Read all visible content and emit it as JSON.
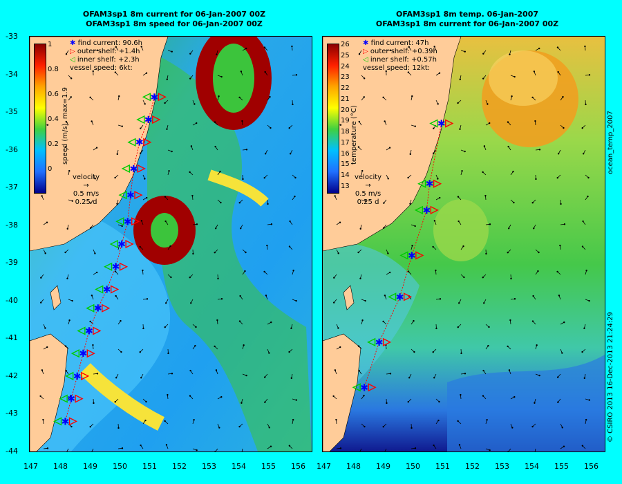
{
  "left_panel": {
    "title_line1": "OFAM3sp1 8m current for 06-Jan-2007 00Z",
    "title_line2": "OFAM3sp1 8m speed for 06-Jan-2007 00Z",
    "legend": {
      "find_current": "find current: 90.6h",
      "outer_shelf": "outer shelf: +1.4h",
      "inner_shelf": "inner shelf: +2.3h",
      "vessel_speed": "vessel speed: 6kt:"
    },
    "colorbar": {
      "label": "speed (m/s), max=1.9",
      "ticks": [
        "1",
        "0.8",
        "0.6",
        "0.4",
        "0.2",
        "0"
      ]
    },
    "velocity_key": {
      "title": "velocity",
      "scale_speed": "0.5 m/s",
      "scale_time": "0.25 d"
    }
  },
  "right_panel": {
    "title_line1": "OFAM3sp1 8m temp. 06-Jan-2007",
    "title_line2": "OFAM3sp1 8m current for 06-Jan-2007 00Z",
    "legend": {
      "find_current": "find current: 47h",
      "outer_shelf": "outer shelf: +0.39h",
      "inner_shelf": "inner shelf: +0.57h",
      "vessel_speed": "vessel speed: 12kt:"
    },
    "colorbar": {
      "label": "temperature (°C)",
      "side_label": "ocean_temp_2007",
      "ticks": [
        "26",
        "25",
        "24",
        "23",
        "22",
        "21",
        "20",
        "19",
        "18",
        "17",
        "16",
        "15",
        "14",
        "13"
      ]
    },
    "velocity_key": {
      "title": "velocity",
      "scale_speed": "0.5 m/s",
      "scale_time": "0.25 d"
    }
  },
  "axes": {
    "x_ticks": [
      "147",
      "148",
      "149",
      "150",
      "151",
      "152",
      "153",
      "154",
      "155",
      "156"
    ],
    "y_ticks": [
      "-33",
      "-34",
      "-35",
      "-36",
      "-37",
      "-38",
      "-39",
      "-40",
      "-41",
      "-42",
      "-43",
      "-44"
    ]
  },
  "right_edge": {
    "label": "ocean_temp_2007",
    "credit": "© CSIRO 2013   16-Dec-2013 21:24:29"
  },
  "colors": {
    "background": "#00ffff",
    "land": "#ffcc99",
    "find_marker": "#0000ff",
    "outer_shelf_marker": "#ff0000",
    "inner_shelf_marker": "#00cc00"
  },
  "map_data": {
    "lon_range": [
      147,
      156.5
    ],
    "lat_range": [
      -44,
      -33
    ],
    "left_track": [
      [
        151.2,
        -34.6
      ],
      [
        151.0,
        -35.2
      ],
      [
        150.7,
        -35.8
      ],
      [
        150.5,
        -36.5
      ],
      [
        150.4,
        -37.2
      ],
      [
        150.3,
        -37.9
      ],
      [
        150.1,
        -38.5
      ],
      [
        149.9,
        -39.1
      ],
      [
        149.6,
        -39.7
      ],
      [
        149.3,
        -40.2
      ],
      [
        149.0,
        -40.8
      ],
      [
        148.8,
        -41.4
      ],
      [
        148.6,
        -42.0
      ],
      [
        148.4,
        -42.6
      ],
      [
        148.2,
        -43.2
      ]
    ],
    "right_track": [
      [
        151.0,
        -35.3
      ],
      [
        150.6,
        -36.9
      ],
      [
        150.5,
        -37.6
      ],
      [
        150.0,
        -38.8
      ],
      [
        149.6,
        -39.9
      ],
      [
        148.9,
        -41.1
      ],
      [
        148.4,
        -42.3
      ]
    ]
  }
}
